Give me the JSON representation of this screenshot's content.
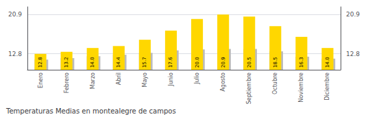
{
  "chart_data": {
    "type": "bar",
    "title": "Temperaturas Medias en montealegre de campos",
    "categories": [
      "Enero",
      "Febrero",
      "Marzo",
      "Abril",
      "Mayo",
      "Junio",
      "Julio",
      "Agosto",
      "Septiembre",
      "Octubre",
      "Noviembre",
      "Diciembre"
    ],
    "series": [
      {
        "color": "#BBBBBB",
        "values": [
          11.6,
          11.9,
          12.3,
          12.6,
          13.0,
          13.5,
          13.7,
          13.8,
          13.8,
          13.3,
          12.2,
          11.8
        ]
      },
      {
        "color": "#FFD700",
        "values": [
          12.8,
          13.2,
          14.0,
          14.4,
          15.7,
          17.6,
          20.0,
          20.9,
          20.5,
          18.5,
          16.3,
          14.0
        ],
        "value_labels": [
          "12.8",
          "13.2",
          "14.0",
          "14.4",
          "15.7",
          "17.6",
          "20.0",
          "20.9",
          "20.5",
          "18.5",
          "16.3",
          "14.0"
        ],
        "data_labels": true
      }
    ],
    "ylim": [
      9.5,
      22.5
    ],
    "yticks": [
      12.8,
      20.9
    ],
    "y2lim": [
      9.5,
      22.5
    ],
    "y2ticks": [
      12.8,
      20.9
    ],
    "grid": true
  }
}
